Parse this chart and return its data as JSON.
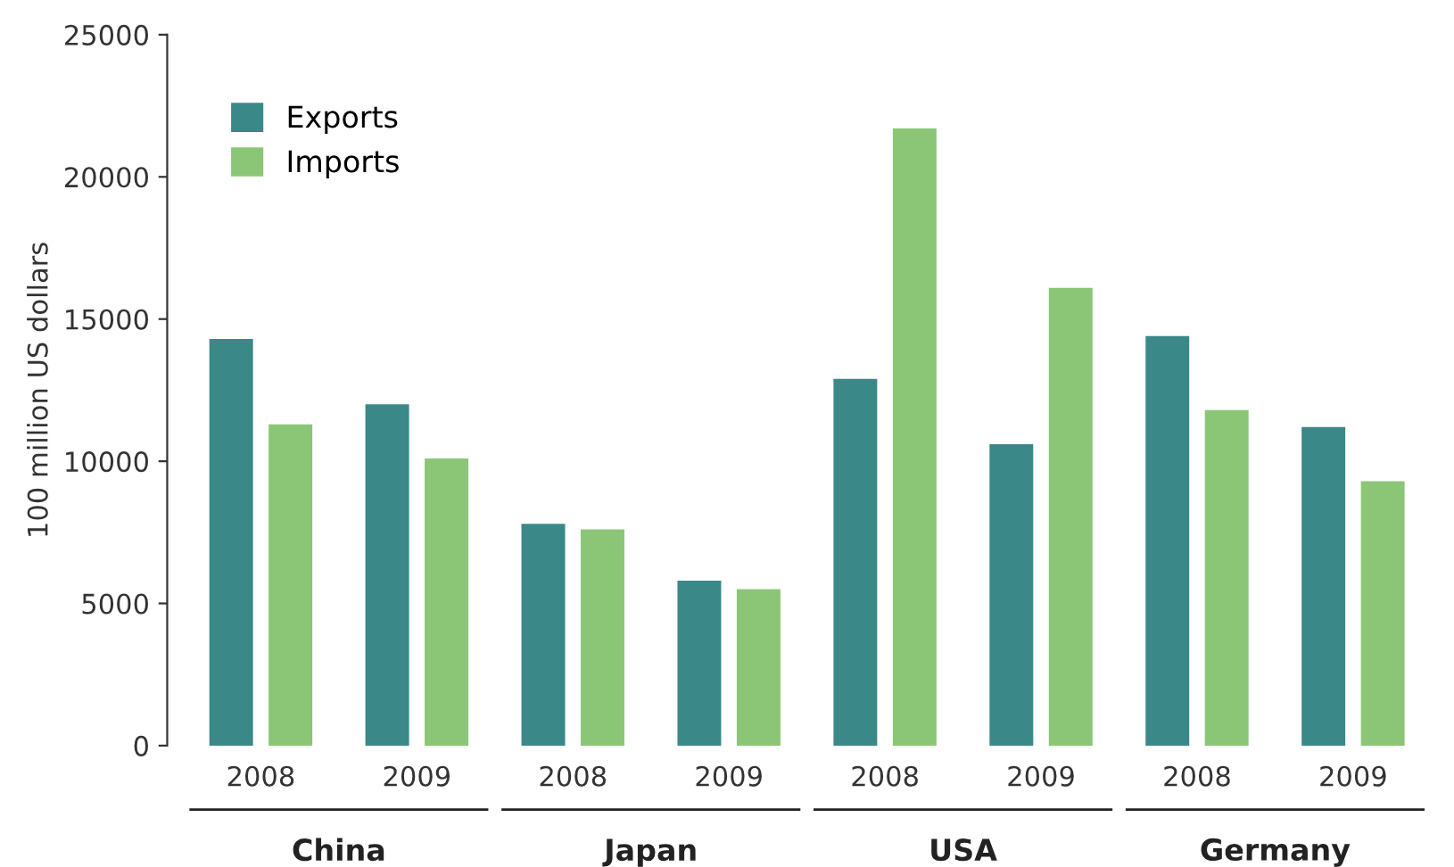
{
  "chart_data": {
    "type": "bar",
    "ylabel": "100 million US dollars",
    "categories": [
      "2008",
      "2009",
      "2008",
      "2009",
      "2008",
      "2009",
      "2008",
      "2009"
    ],
    "series": [
      {
        "name": "Exports",
        "color": "#3b8889",
        "values": [
          14300,
          12000,
          7800,
          5800,
          12900,
          10600,
          14400,
          11200
        ]
      },
      {
        "name": "Imports",
        "color": "#8ac676",
        "values": [
          11300,
          10100,
          7600,
          5500,
          21700,
          16100,
          11800,
          9300
        ]
      }
    ],
    "annotations": [
      "China",
      "Japan",
      "USA",
      "Germany"
    ],
    "ylim": [
      0,
      25000
    ],
    "yticks": [
      0,
      5000,
      10000,
      15000,
      20000,
      25000
    ],
    "grid": false,
    "legend": "top left"
  }
}
